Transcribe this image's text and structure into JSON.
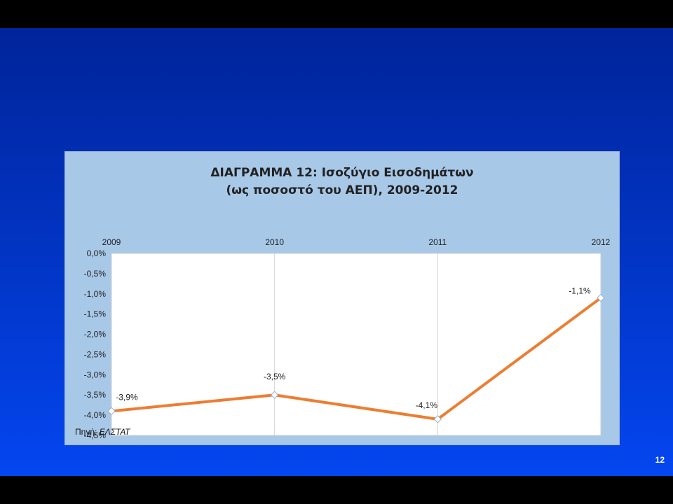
{
  "slide": {
    "page_number": "12"
  },
  "chart_data": {
    "type": "line",
    "title_line1": "ΔΙΑΓΡΑΜΜΑ 12: Ισοζύγιο Εισοδημάτων",
    "title_line2": "(ως ποσοστό του ΑΕΠ), 2009-2012",
    "categories": [
      "2009",
      "2010",
      "2011",
      "2012"
    ],
    "values": [
      -3.9,
      -3.5,
      -4.1,
      -1.1
    ],
    "data_labels": [
      "-3,9%",
      "-3,5%",
      "-4,1%",
      "-1,1%"
    ],
    "ylim": [
      -4.5,
      0
    ],
    "yticks": [
      0,
      -0.5,
      -1,
      -1.5,
      -2,
      -2.5,
      -3,
      -3.5,
      -4,
      -4.5
    ],
    "ytick_labels": [
      "0,0%",
      "-0,5%",
      "-1,0%",
      "-1,5%",
      "-2,0%",
      "-2,5%",
      "-3,0%",
      "-3,5%",
      "-4,0%",
      "-4,5%"
    ],
    "x_axis_position": "top",
    "line_color": "#ed7d31",
    "grid": "vertical",
    "legend": "none"
  },
  "source": {
    "label": "Πηγή:",
    "value": "ΕΛΣΤΑΤ"
  }
}
